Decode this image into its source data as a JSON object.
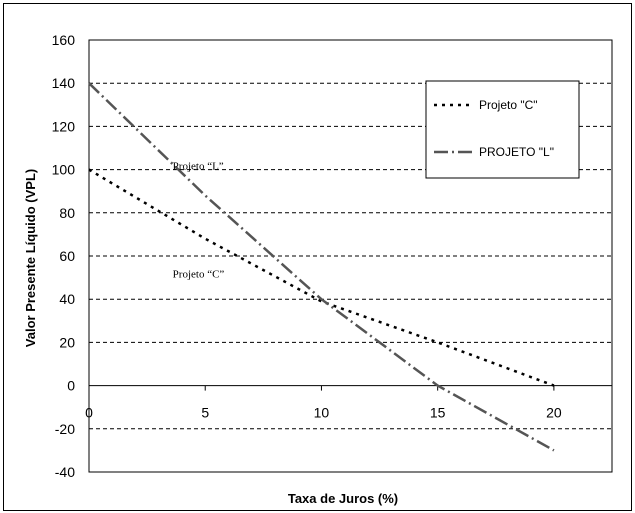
{
  "chart_data": {
    "type": "line",
    "xlabel": "Taxa de Juros (%)",
    "ylabel": "Valor Presente Líquido (VPL)",
    "xlim": [
      0,
      22.5
    ],
    "ylim": [
      -40,
      160
    ],
    "x_ticks": [
      0,
      5,
      10,
      15,
      20
    ],
    "y_ticks": [
      -40,
      -20,
      0,
      20,
      40,
      60,
      80,
      100,
      120,
      140,
      160
    ],
    "grid": "horizontal-dashed",
    "legend_position": "top-right",
    "series": [
      {
        "name": "Projeto \"C\"",
        "style": "dotted",
        "color": "#000000",
        "x": [
          0,
          5,
          10,
          15,
          20
        ],
        "y": [
          100,
          68,
          39,
          20,
          0
        ]
      },
      {
        "name": "PROJETO \"L\"",
        "style": "dash-dot",
        "color": "#000000",
        "x": [
          0,
          5,
          10,
          15,
          20
        ],
        "y": [
          140,
          88,
          40,
          0,
          -30
        ]
      }
    ],
    "annotations": [
      {
        "text": "Projeto “L”",
        "x": 3.6,
        "y": 100
      },
      {
        "text": "Projeto “C”",
        "x": 3.6,
        "y": 50
      }
    ]
  }
}
